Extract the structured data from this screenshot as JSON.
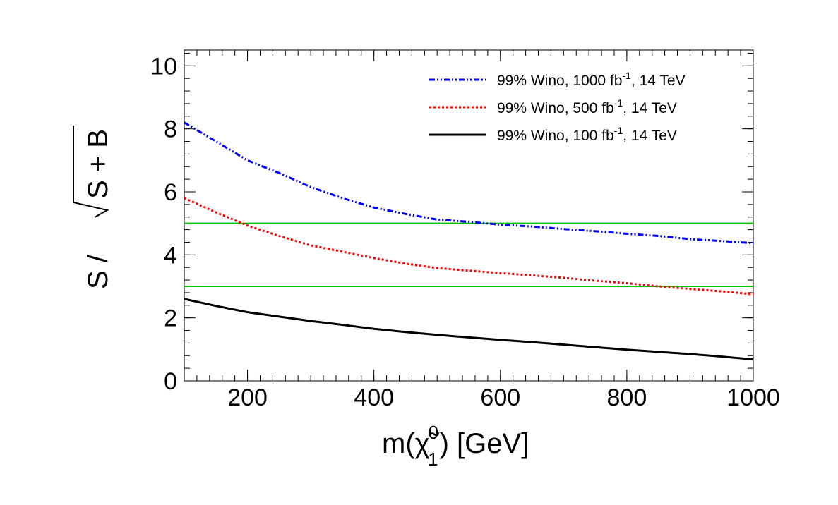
{
  "chart_data": {
    "type": "line",
    "title": "",
    "xlabel": {
      "prefix": "m(",
      "symbol": "χ̃",
      "superscript": "0",
      "subscript": "1",
      "suffix": ") [GeV]"
    },
    "ylabel": {
      "numerator": "S / ",
      "radicand": "S + B"
    },
    "xlim": [
      100,
      1000
    ],
    "ylim": [
      0,
      10.5
    ],
    "xticks": [
      200,
      400,
      600,
      800,
      1000
    ],
    "yticks": [
      0,
      2,
      4,
      6,
      8,
      10
    ],
    "series": [
      {
        "name": "99% Wino, 1000 fb-1, 14 TeV",
        "legend": {
          "main": "99% Wino, 1000 fb",
          "sup": "-1",
          "tail": ", 14 TeV"
        },
        "color": "#0000ff",
        "style": "dash-dot-dot",
        "x": [
          100,
          150,
          200,
          250,
          300,
          350,
          400,
          450,
          500,
          550,
          600,
          650,
          700,
          750,
          800,
          850,
          900,
          950,
          1000
        ],
        "y": [
          8.2,
          7.6,
          7.0,
          6.6,
          6.15,
          5.8,
          5.5,
          5.3,
          5.12,
          5.05,
          4.96,
          4.9,
          4.82,
          4.75,
          4.67,
          4.6,
          4.5,
          4.44,
          4.37
        ]
      },
      {
        "name": "99% Wino, 500 fb-1, 14 TeV",
        "legend": {
          "main": "99% Wino, 500 fb",
          "sup": "-1",
          "tail": ", 14 TeV"
        },
        "color": "#ff0000",
        "style": "dotted",
        "x": [
          100,
          150,
          200,
          250,
          300,
          350,
          400,
          450,
          500,
          550,
          600,
          650,
          700,
          750,
          800,
          850,
          900,
          950,
          1000
        ],
        "y": [
          5.8,
          5.35,
          4.93,
          4.6,
          4.3,
          4.1,
          3.9,
          3.72,
          3.58,
          3.5,
          3.42,
          3.35,
          3.27,
          3.18,
          3.1,
          3.0,
          2.92,
          2.84,
          2.75
        ]
      },
      {
        "name": "99% Wino, 100 fb-1, 14 TeV",
        "legend": {
          "main": "99% Wino, 100 fb",
          "sup": "-1",
          "tail": ", 14 TeV"
        },
        "color": "#000000",
        "style": "solid",
        "x": [
          100,
          150,
          200,
          250,
          300,
          350,
          400,
          450,
          500,
          550,
          600,
          650,
          700,
          750,
          800,
          850,
          900,
          950,
          1000
        ],
        "y": [
          2.6,
          2.38,
          2.18,
          2.04,
          1.9,
          1.78,
          1.65,
          1.55,
          1.46,
          1.38,
          1.3,
          1.23,
          1.15,
          1.07,
          0.99,
          0.92,
          0.85,
          0.77,
          0.68
        ]
      }
    ],
    "reference_lines": [
      {
        "y": 5,
        "color": "#00c000"
      },
      {
        "y": 3,
        "color": "#00c000"
      }
    ],
    "legend_position": "top-right",
    "grid": false
  }
}
